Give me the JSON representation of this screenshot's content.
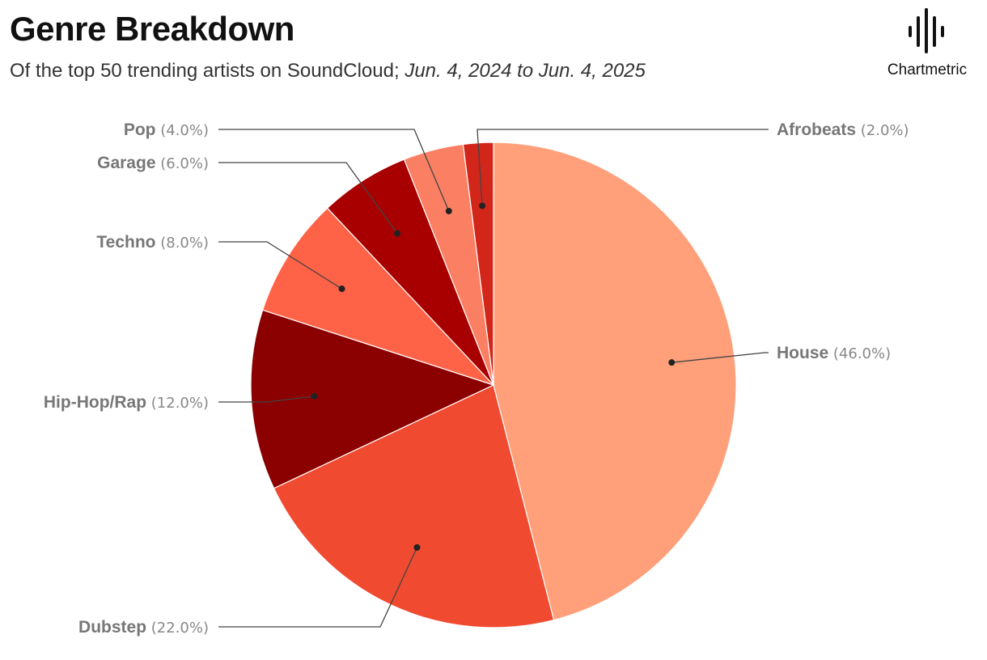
{
  "title": "Genre Breakdown",
  "subtitle": {
    "prefix": "Of the top 50 trending artists on SoundCloud; ",
    "dates": "Jun. 4, 2024 to Jun. 4, 2025"
  },
  "brand": {
    "name": "Chartmetric",
    "icon": "soundwave-bars-icon"
  },
  "chart_data": {
    "type": "pie",
    "start_angle": "12 o'clock",
    "direction": "clockwise",
    "slices": [
      {
        "label": "House",
        "value": 46.0,
        "pct_label": "(46.0%)",
        "color": "#FFA07A"
      },
      {
        "label": "Dubstep",
        "value": 22.0,
        "pct_label": "(22.0%)",
        "color": "#F04A30"
      },
      {
        "label": "Hip-Hop/Rap",
        "value": 12.0,
        "pct_label": "(12.0%)",
        "color": "#8B0000"
      },
      {
        "label": "Techno",
        "value": 8.0,
        "pct_label": "(8.0%)",
        "color": "#FF6347"
      },
      {
        "label": "Garage",
        "value": 6.0,
        "pct_label": "(6.0%)",
        "color": "#A80000"
      },
      {
        "label": "Pop",
        "value": 4.0,
        "pct_label": "(4.0%)",
        "color": "#FA7F63"
      },
      {
        "label": "Afrobeats",
        "value": 2.0,
        "pct_label": "(2.0%)",
        "color": "#D2261A"
      }
    ]
  }
}
